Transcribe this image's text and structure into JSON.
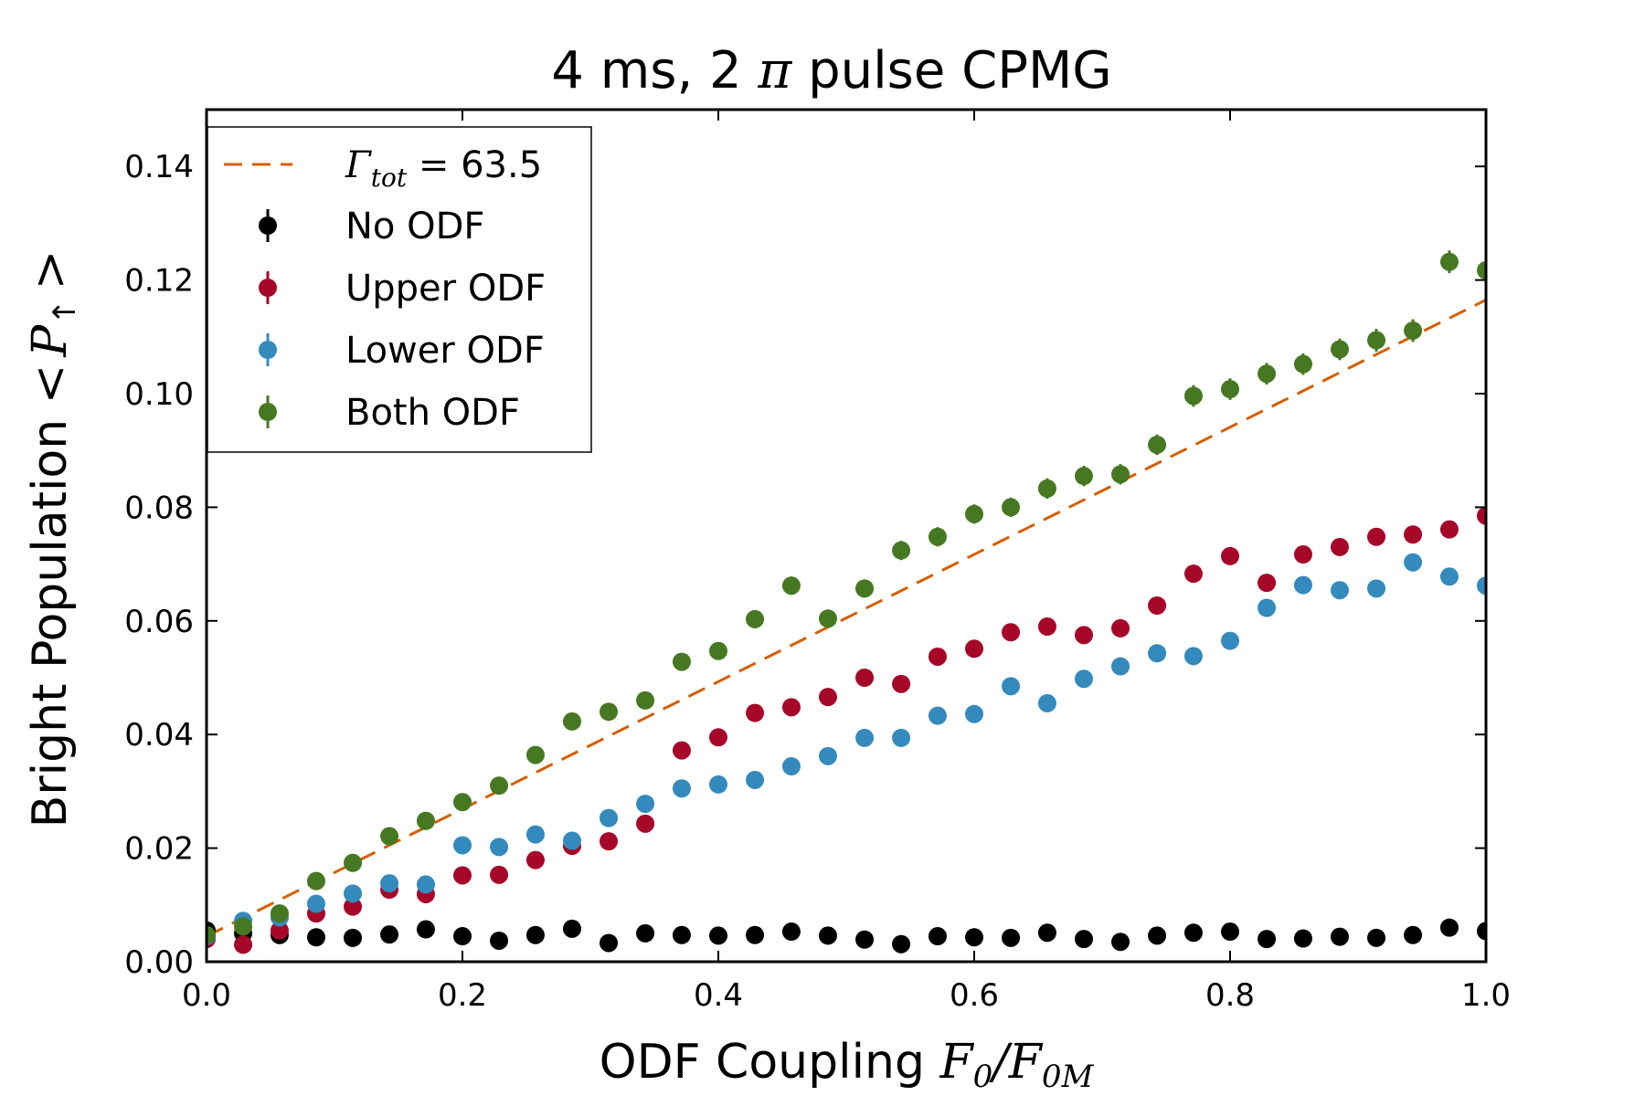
{
  "chart_data": {
    "type": "scatter",
    "title": "4 ms, 2 π pulse CPMG",
    "title_parts": {
      "prefix": "4 ms, 2 ",
      "symbol": "π",
      "suffix": " pulse CPMG"
    },
    "xlabel": "ODF Coupling F0/F0M",
    "xlabel_parts": {
      "text": "ODF Coupling ",
      "math_main": "F",
      "sub1": "0",
      "slash": "/",
      "math_main2": "F",
      "sub2": "0M"
    },
    "ylabel": "Bright Population <P↑>",
    "ylabel_parts": {
      "text": "Bright Population ",
      "lt": "<",
      "math_main": "P",
      "sub": "↑",
      "gt": ">"
    },
    "xlim": [
      0.0,
      1.0
    ],
    "ylim": [
      0.0,
      0.15
    ],
    "xticks": [
      "0.0",
      "0.2",
      "0.4",
      "0.6",
      "0.8",
      "1.0"
    ],
    "yticks": [
      "0.00",
      "0.02",
      "0.04",
      "0.06",
      "0.08",
      "0.10",
      "0.12",
      "0.14"
    ],
    "grid": false,
    "legend_position": "upper-left",
    "fit": {
      "label": "Γtot = 63.5",
      "label_parts": {
        "math_main": "Γ",
        "sub": "tot",
        "eq": " = ",
        "value": "63.5"
      },
      "x": [
        0.0,
        1.0
      ],
      "y": [
        0.0045,
        0.1165
      ],
      "color": "#d55e00"
    },
    "x": [
      0.0,
      0.0286,
      0.0571,
      0.0857,
      0.1143,
      0.1429,
      0.1714,
      0.2,
      0.2286,
      0.2571,
      0.2857,
      0.3143,
      0.3429,
      0.3714,
      0.4,
      0.4286,
      0.4571,
      0.4857,
      0.5143,
      0.5429,
      0.5714,
      0.6,
      0.6286,
      0.6571,
      0.6857,
      0.7143,
      0.7429,
      0.7714,
      0.8,
      0.8286,
      0.8571,
      0.8857,
      0.9143,
      0.9429,
      0.9714,
      1.0
    ],
    "series": [
      {
        "name": "No ODF",
        "color": "#000000",
        "values": [
          0.0055,
          0.005,
          0.0047,
          0.0043,
          0.0042,
          0.0048,
          0.0057,
          0.0045,
          0.0037,
          0.0047,
          0.0058,
          0.0033,
          0.005,
          0.0047,
          0.0046,
          0.0047,
          0.0053,
          0.0046,
          0.0039,
          0.0031,
          0.0045,
          0.0043,
          0.0042,
          0.0051,
          0.004,
          0.0035,
          0.0046,
          0.0051,
          0.0053,
          0.004,
          0.0041,
          0.0044,
          0.0042,
          0.0047,
          0.006,
          0.0054
        ],
        "errors": [
          0.0005,
          0.0005,
          0.0005,
          0.0005,
          0.0005,
          0.0005,
          0.0005,
          0.0005,
          0.0005,
          0.0005,
          0.0005,
          0.0005,
          0.0005,
          0.0005,
          0.0005,
          0.0005,
          0.0005,
          0.0005,
          0.0005,
          0.0005,
          0.0005,
          0.0005,
          0.0005,
          0.0005,
          0.0005,
          0.0005,
          0.0005,
          0.0005,
          0.0005,
          0.0005,
          0.0005,
          0.0005,
          0.0005,
          0.0005,
          0.0005,
          0.0005
        ]
      },
      {
        "name": "Upper ODF",
        "color": "#a60628",
        "values": [
          0.004,
          0.003,
          0.0055,
          0.0085,
          0.0097,
          0.0127,
          0.0119,
          0.0152,
          0.0153,
          0.0179,
          0.0204,
          0.0212,
          0.0243,
          0.0372,
          0.0395,
          0.0438,
          0.0448,
          0.0466,
          0.05,
          0.0489,
          0.0537,
          0.0551,
          0.058,
          0.059,
          0.0575,
          0.0587,
          0.0627,
          0.0683,
          0.0714,
          0.0667,
          0.0717,
          0.073,
          0.0748,
          0.0752,
          0.0761,
          0.0785
        ],
        "errors": [
          0.0008,
          0.0008,
          0.0008,
          0.0009,
          0.0009,
          0.001,
          0.001,
          0.001,
          0.001,
          0.001,
          0.001,
          0.001,
          0.001,
          0.0012,
          0.0012,
          0.0012,
          0.0012,
          0.0012,
          0.0013,
          0.0013,
          0.0013,
          0.0013,
          0.0013,
          0.0013,
          0.0013,
          0.0013,
          0.0014,
          0.0014,
          0.0014,
          0.0014,
          0.0014,
          0.0014,
          0.0014,
          0.0014,
          0.0014,
          0.0014
        ]
      },
      {
        "name": "Lower ODF",
        "color": "#348abd",
        "values": [
          0.0045,
          0.0072,
          0.0078,
          0.0102,
          0.012,
          0.0138,
          0.0136,
          0.0205,
          0.0202,
          0.0224,
          0.0213,
          0.0253,
          0.0278,
          0.0305,
          0.0312,
          0.032,
          0.0344,
          0.0362,
          0.0394,
          0.0394,
          0.0433,
          0.0436,
          0.0485,
          0.0455,
          0.0498,
          0.052,
          0.0543,
          0.0538,
          0.0565,
          0.0623,
          0.0663,
          0.0654,
          0.0657,
          0.0703,
          0.0678,
          0.0662
        ],
        "errors": [
          0.0008,
          0.0008,
          0.0008,
          0.0009,
          0.0009,
          0.001,
          0.001,
          0.001,
          0.001,
          0.001,
          0.001,
          0.001,
          0.001,
          0.0011,
          0.0011,
          0.0011,
          0.0011,
          0.0011,
          0.0012,
          0.0012,
          0.0012,
          0.0012,
          0.0012,
          0.0012,
          0.0012,
          0.0012,
          0.0013,
          0.0013,
          0.0013,
          0.0013,
          0.0013,
          0.0013,
          0.0013,
          0.0013,
          0.0013,
          0.0013
        ]
      },
      {
        "name": "Both ODF",
        "color": "#467821",
        "values": [
          0.0047,
          0.0062,
          0.0085,
          0.0142,
          0.0174,
          0.0221,
          0.0248,
          0.0281,
          0.031,
          0.0364,
          0.0423,
          0.044,
          0.046,
          0.0528,
          0.0547,
          0.0603,
          0.0662,
          0.0604,
          0.0657,
          0.0724,
          0.0748,
          0.0788,
          0.08,
          0.0833,
          0.0855,
          0.0858,
          0.091,
          0.0996,
          0.1008,
          0.1035,
          0.1052,
          0.1078,
          0.1094,
          0.1111,
          0.1232,
          0.1217
        ],
        "errors": [
          0.001,
          0.001,
          0.001,
          0.0011,
          0.0011,
          0.0012,
          0.0012,
          0.0013,
          0.0013,
          0.0014,
          0.0014,
          0.0014,
          0.0015,
          0.0015,
          0.0015,
          0.0016,
          0.0016,
          0.0016,
          0.0016,
          0.0017,
          0.0017,
          0.0017,
          0.0017,
          0.0018,
          0.0018,
          0.0018,
          0.0018,
          0.0019,
          0.0019,
          0.0019,
          0.0019,
          0.0019,
          0.002,
          0.002,
          0.002,
          0.002
        ]
      }
    ]
  }
}
